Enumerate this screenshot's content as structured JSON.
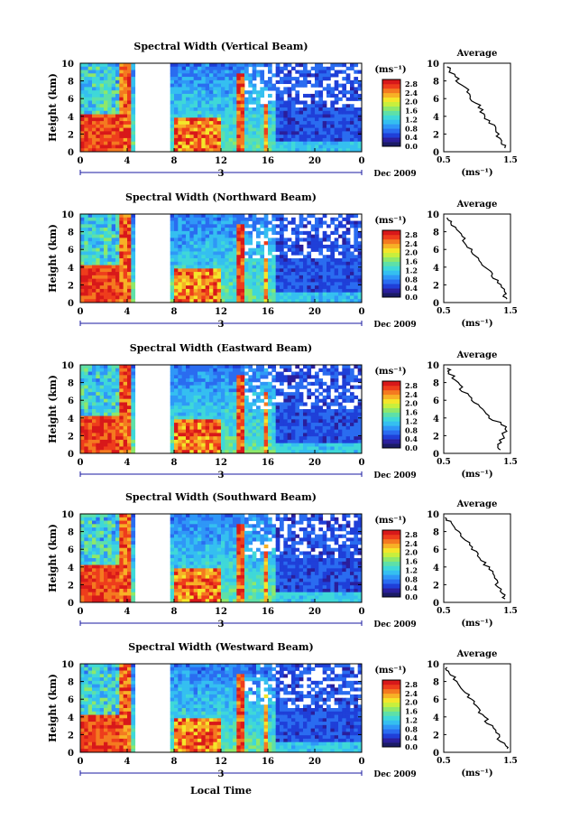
{
  "figure": {
    "xlabel": "Local Time",
    "day_label": "3",
    "date_label": "Dec 2009",
    "avg_title": "Average",
    "avg_xlabel": "(ms⁻¹)",
    "colorbar_title": "(ms⁻¹)"
  },
  "chart_data": [
    {
      "type": "heatmap",
      "title": "Spectral Width (Vertical Beam)",
      "ylabel": "Height (km)",
      "x_ticks": [
        "0",
        "4",
        "8",
        "12",
        "16",
        "20",
        "0"
      ],
      "y_ticks": [
        "0",
        "2",
        "4",
        "6",
        "8",
        "10"
      ],
      "xlim": [
        0,
        24
      ],
      "ylim": [
        0,
        10
      ],
      "colorbar_ticks": [
        "0.0",
        "0.4",
        "0.8",
        "1.2",
        "1.6",
        "2.0",
        "2.4",
        "2.8"
      ],
      "colorbar_range": [
        0.0,
        3.0
      ],
      "data_gap_hours": [
        4.5,
        7.7
      ],
      "average_profile": {
        "xlim": [
          0.5,
          1.5
        ],
        "x_ticks": [
          "0.5",
          "1.5"
        ],
        "y_ticks": [
          "0",
          "2",
          "4",
          "6",
          "8",
          "10"
        ],
        "height_km": [
          0.4,
          1,
          2,
          3,
          4,
          5,
          6,
          7,
          8,
          9,
          9.6
        ],
        "width_ms": [
          1.42,
          1.38,
          1.3,
          1.24,
          1.1,
          1.05,
          0.92,
          0.84,
          0.72,
          0.62,
          0.55
        ]
      }
    },
    {
      "type": "heatmap",
      "title": "Spectral Width (Northward Beam)",
      "ylabel": "Height (km)",
      "x_ticks": [
        "0",
        "4",
        "8",
        "12",
        "16",
        "20",
        "0"
      ],
      "y_ticks": [
        "0",
        "2",
        "4",
        "6",
        "8",
        "10"
      ],
      "xlim": [
        0,
        24
      ],
      "ylim": [
        0,
        10
      ],
      "colorbar_ticks": [
        "0.0",
        "0.4",
        "0.8",
        "1.2",
        "1.6",
        "2.0",
        "2.4",
        "2.8"
      ],
      "colorbar_range": [
        0.0,
        3.0
      ],
      "data_gap_hours": [
        4.5,
        7.7
      ],
      "average_profile": {
        "xlim": [
          0.5,
          1.5
        ],
        "x_ticks": [
          "0.5",
          "1.5"
        ],
        "y_ticks": [
          "0",
          "2",
          "4",
          "6",
          "8",
          "10"
        ],
        "height_km": [
          0.4,
          1,
          2,
          3,
          4,
          5,
          6,
          7,
          8,
          9,
          9.6
        ],
        "width_ms": [
          1.45,
          1.4,
          1.35,
          1.25,
          1.12,
          1.02,
          0.9,
          0.82,
          0.7,
          0.6,
          0.55
        ]
      }
    },
    {
      "type": "heatmap",
      "title": "Spectral Width (Eastward Beam)",
      "ylabel": "Height (km)",
      "x_ticks": [
        "0",
        "4",
        "8",
        "12",
        "16",
        "20",
        "0"
      ],
      "y_ticks": [
        "0",
        "2",
        "4",
        "6",
        "8",
        "10"
      ],
      "xlim": [
        0,
        24
      ],
      "ylim": [
        0,
        10
      ],
      "colorbar_ticks": [
        "0.0",
        "0.4",
        "0.8",
        "1.2",
        "1.6",
        "2.0",
        "2.4",
        "2.8"
      ],
      "colorbar_range": [
        0.0,
        3.0
      ],
      "data_gap_hours": [
        4.5,
        7.7
      ],
      "average_profile": {
        "xlim": [
          0.5,
          1.5
        ],
        "x_ticks": [
          "0.5",
          "1.5"
        ],
        "y_ticks": [
          "0",
          "2",
          "4",
          "6",
          "8",
          "10"
        ],
        "height_km": [
          0.4,
          1,
          2,
          3,
          4,
          5,
          6,
          7,
          8,
          9,
          9.6
        ],
        "width_ms": [
          1.35,
          1.3,
          1.4,
          1.45,
          1.2,
          1.05,
          0.92,
          0.8,
          0.7,
          0.6,
          0.55
        ]
      }
    },
    {
      "type": "heatmap",
      "title": "Spectral Width (Southward Beam)",
      "ylabel": "Height (km)",
      "x_ticks": [
        "0",
        "4",
        "8",
        "12",
        "16",
        "20",
        "0"
      ],
      "y_ticks": [
        "0",
        "2",
        "4",
        "6",
        "8",
        "10"
      ],
      "xlim": [
        0,
        24
      ],
      "ylim": [
        0,
        10
      ],
      "colorbar_ticks": [
        "0.0",
        "0.4",
        "0.8",
        "1.2",
        "1.6",
        "2.0",
        "2.4",
        "2.8"
      ],
      "colorbar_range": [
        0.0,
        3.0
      ],
      "data_gap_hours": [
        4.5,
        7.7
      ],
      "average_profile": {
        "xlim": [
          0.5,
          1.5
        ],
        "x_ticks": [
          "0.5",
          "1.5"
        ],
        "y_ticks": [
          "0",
          "2",
          "4",
          "6",
          "8",
          "10"
        ],
        "height_km": [
          0.4,
          1,
          2,
          3,
          4,
          5,
          6,
          7,
          8,
          9,
          9.6
        ],
        "width_ms": [
          1.42,
          1.4,
          1.3,
          1.25,
          1.15,
          1.05,
          0.95,
          0.85,
          0.72,
          0.6,
          0.52
        ]
      }
    },
    {
      "type": "heatmap",
      "title": "Spectral Width (Westward Beam)",
      "ylabel": "Height (km)",
      "x_ticks": [
        "0",
        "4",
        "8",
        "12",
        "16",
        "20",
        "0"
      ],
      "y_ticks": [
        "0",
        "2",
        "4",
        "6",
        "8",
        "10"
      ],
      "xlim": [
        0,
        24
      ],
      "ylim": [
        0,
        10
      ],
      "colorbar_ticks": [
        "0.0",
        "0.4",
        "0.8",
        "1.2",
        "1.6",
        "2.0",
        "2.4",
        "2.8"
      ],
      "colorbar_range": [
        0.0,
        3.0
      ],
      "data_gap_hours": [
        4.5,
        7.7
      ],
      "average_profile": {
        "xlim": [
          0.5,
          1.5
        ],
        "x_ticks": [
          "0.5",
          "1.5"
        ],
        "y_ticks": [
          "0",
          "2",
          "4",
          "6",
          "8",
          "10"
        ],
        "height_km": [
          0.4,
          1,
          2,
          3,
          4,
          5,
          6,
          7,
          8,
          9,
          9.6
        ],
        "width_ms": [
          1.45,
          1.38,
          1.3,
          1.2,
          1.1,
          1.0,
          0.9,
          0.8,
          0.7,
          0.6,
          0.55
        ]
      }
    }
  ]
}
